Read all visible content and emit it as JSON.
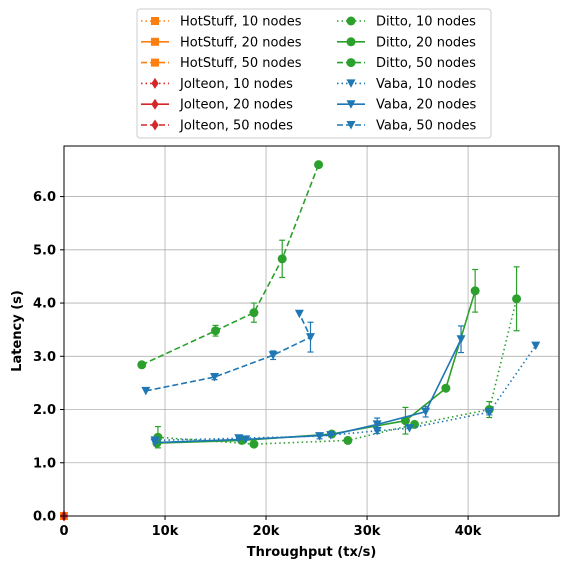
{
  "chart_data": {
    "type": "line",
    "xlabel": "Throughput (tx/s)",
    "ylabel": "Latency (s)",
    "xlim": [
      0,
      49000
    ],
    "ylim": [
      0,
      6.95
    ],
    "xticks": [
      {
        "value": 0,
        "label": "0"
      },
      {
        "value": 10000,
        "label": "10k"
      },
      {
        "value": 20000,
        "label": "20k"
      },
      {
        "value": 30000,
        "label": "30k"
      },
      {
        "value": 40000,
        "label": "40k"
      }
    ],
    "yticks": [
      {
        "value": 0,
        "label": "0.0"
      },
      {
        "value": 1,
        "label": "1.0"
      },
      {
        "value": 2,
        "label": "2.0"
      },
      {
        "value": 3,
        "label": "3.0"
      },
      {
        "value": 4,
        "label": "4.0"
      },
      {
        "value": 5,
        "label": "5.0"
      },
      {
        "value": 6,
        "label": "6.0"
      }
    ],
    "grid": true,
    "legend": {
      "placement": "top-center, above plot",
      "columns": 2
    },
    "colors": {
      "hotstuff": "#ff7f0e",
      "jolteon": "#d62728",
      "ditto": "#2ca02c",
      "vaba": "#1f77b4"
    },
    "series": [
      {
        "name": "HotStuff, 10 nodes",
        "color": "#ff7f0e",
        "dash": "dotted",
        "marker": "square",
        "points": [
          {
            "x": 0,
            "y": 0
          }
        ]
      },
      {
        "name": "HotStuff, 20 nodes",
        "color": "#ff7f0e",
        "dash": "solid",
        "marker": "square",
        "points": [
          {
            "x": 0,
            "y": 0
          }
        ]
      },
      {
        "name": "HotStuff, 50 nodes",
        "color": "#ff7f0e",
        "dash": "dashed",
        "marker": "square",
        "points": [
          {
            "x": 0,
            "y": 0
          }
        ]
      },
      {
        "name": "Jolteon, 10 nodes",
        "color": "#d62728",
        "dash": "dotted",
        "marker": "diamond",
        "points": [
          {
            "x": 0,
            "y": 0
          }
        ]
      },
      {
        "name": "Jolteon, 20 nodes",
        "color": "#d62728",
        "dash": "solid",
        "marker": "diamond",
        "points": [
          {
            "x": 0,
            "y": 0
          }
        ]
      },
      {
        "name": "Jolteon, 50 nodes",
        "color": "#d62728",
        "dash": "dashed",
        "marker": "diamond",
        "points": [
          {
            "x": 0,
            "y": 0
          }
        ]
      },
      {
        "name": "Ditto, 10 nodes",
        "color": "#2ca02c",
        "dash": "dotted",
        "marker": "circle",
        "points": [
          {
            "x": 9300,
            "y": 1.48,
            "err": 0.2
          },
          {
            "x": 18800,
            "y": 1.35,
            "err": 0.02
          },
          {
            "x": 28100,
            "y": 1.42,
            "err": 0.02
          },
          {
            "x": 34700,
            "y": 1.72,
            "err": 0.02
          },
          {
            "x": 42100,
            "y": 2.0,
            "err": 0.15
          },
          {
            "x": 44800,
            "y": 4.08,
            "err": 0.6
          }
        ]
      },
      {
        "name": "Ditto, 20 nodes",
        "color": "#2ca02c",
        "dash": "solid",
        "marker": "circle",
        "points": [
          {
            "x": 9200,
            "y": 1.37,
            "err": 0.03
          },
          {
            "x": 17600,
            "y": 1.42,
            "err": 0.02
          },
          {
            "x": 26500,
            "y": 1.54,
            "err": 0.03
          },
          {
            "x": 33800,
            "y": 1.79,
            "err": 0.25
          },
          {
            "x": 37800,
            "y": 2.4,
            "err": 0.03
          },
          {
            "x": 40700,
            "y": 4.23,
            "err": 0.4
          }
        ]
      },
      {
        "name": "Ditto, 50 nodes",
        "color": "#2ca02c",
        "dash": "dashed",
        "marker": "circle",
        "points": [
          {
            "x": 7700,
            "y": 2.84,
            "err": 0.03
          },
          {
            "x": 15000,
            "y": 3.48,
            "err": 0.1
          },
          {
            "x": 18800,
            "y": 3.82,
            "err": 0.18
          },
          {
            "x": 21600,
            "y": 4.83,
            "err": 0.35
          },
          {
            "x": 25200,
            "y": 6.6,
            "err": 0.02
          }
        ]
      },
      {
        "name": "Vaba, 10 nodes",
        "color": "#1f77b4",
        "dash": "dotted",
        "marker": "triangle-down",
        "points": [
          {
            "x": 9000,
            "y": 1.42,
            "err": 0.02
          },
          {
            "x": 17300,
            "y": 1.46,
            "err": 0.02
          },
          {
            "x": 25300,
            "y": 1.5,
            "err": 0.05
          },
          {
            "x": 31000,
            "y": 1.6,
            "err": 0.05
          },
          {
            "x": 34200,
            "y": 1.65,
            "err": 0.03
          },
          {
            "x": 42100,
            "y": 1.95,
            "err": 0.05
          },
          {
            "x": 46700,
            "y": 3.2,
            "err": 0.03
          }
        ]
      },
      {
        "name": "Vaba, 20 nodes",
        "color": "#1f77b4",
        "dash": "solid",
        "marker": "triangle-down",
        "points": [
          {
            "x": 9000,
            "y": 1.38,
            "err": 0.02
          },
          {
            "x": 18000,
            "y": 1.44,
            "err": 0.02
          },
          {
            "x": 26400,
            "y": 1.52,
            "err": 0.03
          },
          {
            "x": 31000,
            "y": 1.72,
            "err": 0.12
          },
          {
            "x": 35800,
            "y": 1.96,
            "err": 0.1
          },
          {
            "x": 39300,
            "y": 3.32,
            "err": 0.25
          }
        ]
      },
      {
        "name": "Vaba, 50 nodes",
        "color": "#1f77b4",
        "dash": "dashed",
        "marker": "triangle-down",
        "points": [
          {
            "x": 8100,
            "y": 2.35,
            "err": 0.03
          },
          {
            "x": 14900,
            "y": 2.61,
            "err": 0.05
          },
          {
            "x": 20700,
            "y": 3.02,
            "err": 0.08
          },
          {
            "x": 24400,
            "y": 3.36,
            "err": 0.28
          },
          {
            "x": 23300,
            "y": 3.8,
            "err": 0.02
          }
        ]
      }
    ]
  }
}
